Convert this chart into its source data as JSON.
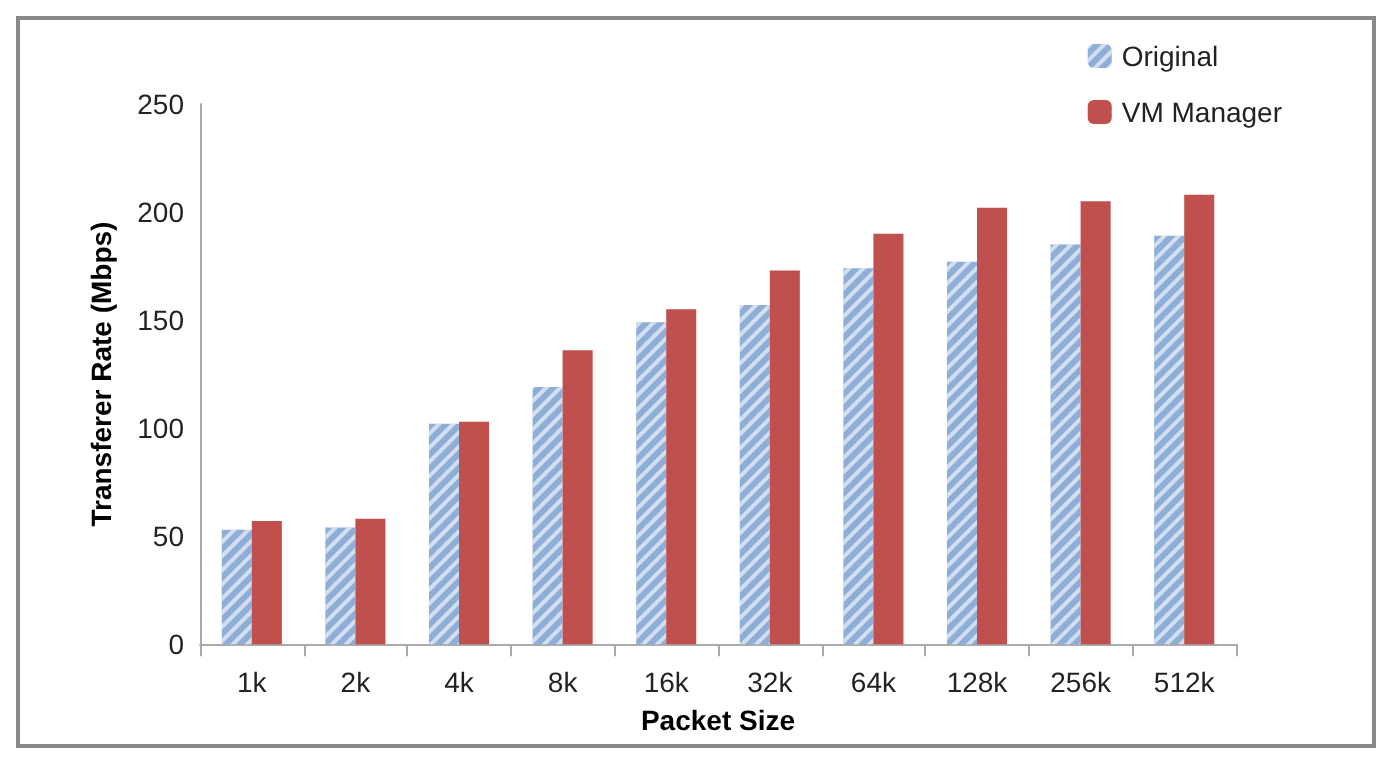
{
  "chart_data": {
    "type": "bar",
    "xlabel": "Packet Size",
    "ylabel": "Transferer Rate (Mbps)",
    "categories": [
      "1k",
      "2k",
      "4k",
      "8k",
      "16k",
      "32k",
      "64k",
      "128k",
      "256k",
      "512k"
    ],
    "series": [
      {
        "name": "Original",
        "color": "#8eaed8",
        "values": [
          53,
          54,
          102,
          119,
          149,
          157,
          174,
          177,
          185,
          189
        ]
      },
      {
        "name": "VM Manager",
        "color": "#c0504d",
        "values": [
          57,
          58,
          103,
          136,
          155,
          173,
          190,
          202,
          205,
          208
        ]
      }
    ],
    "ylim": [
      0,
      250
    ],
    "yticks": [
      0,
      50,
      100,
      150,
      200,
      250
    ],
    "grid": false,
    "legend": "top right"
  }
}
